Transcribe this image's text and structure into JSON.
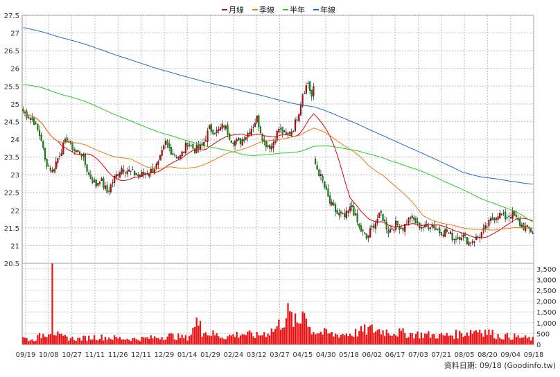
{
  "chart_data": {
    "type": "candlestick",
    "legend": [
      {
        "name": "月線",
        "color": "#dd0000"
      },
      {
        "name": "季線",
        "color": "#ee7711"
      },
      {
        "name": "半年",
        "color": "#22cc22"
      },
      {
        "name": "年線",
        "color": "#2266cc"
      }
    ],
    "price_axis": {
      "ylim": [
        20.5,
        27.5
      ],
      "ticks": [
        "27.5",
        "27",
        "26.5",
        "26",
        "25.5",
        "25",
        "24.5",
        "24",
        "23.5",
        "23",
        "22.5",
        "22",
        "21.5",
        "21",
        "20.5"
      ],
      "tick_values": [
        27.5,
        27,
        26.5,
        26,
        25.5,
        25,
        24.5,
        24,
        23.5,
        23,
        22.5,
        22,
        21.5,
        21,
        20.5
      ]
    },
    "volume_axis": {
      "ylim": [
        0,
        3750
      ],
      "ticks": [
        "3,500",
        "3,000",
        "2,500",
        "2,000",
        "1,500",
        "1,000",
        "500",
        "0"
      ],
      "tick_values": [
        3500,
        3000,
        2500,
        2000,
        1500,
        1000,
        500,
        0
      ]
    },
    "x_labels": [
      "09/19",
      "10/08",
      "10/27",
      "11/11",
      "11/26",
      "12/11",
      "12/29",
      "01/14",
      "01/29",
      "02/24",
      "03/12",
      "03/27",
      "04/15",
      "04/30",
      "05/18",
      "06/02",
      "06/17",
      "07/03",
      "07/21",
      "08/05",
      "08/20",
      "09/04",
      "09/18"
    ],
    "close_anchors": [
      [
        0,
        24.8
      ],
      [
        6,
        24.5
      ],
      [
        10,
        24.0
      ],
      [
        12,
        23.4
      ],
      [
        16,
        23.1
      ],
      [
        20,
        23.6
      ],
      [
        24,
        24.0
      ],
      [
        28,
        23.7
      ],
      [
        32,
        23.6
      ],
      [
        36,
        23.0
      ],
      [
        40,
        22.7
      ],
      [
        42,
        22.9
      ],
      [
        46,
        22.5
      ],
      [
        50,
        22.9
      ],
      [
        54,
        23.2
      ],
      [
        58,
        23.1
      ],
      [
        62,
        23.0
      ],
      [
        66,
        23.0
      ],
      [
        70,
        23.1
      ],
      [
        74,
        23.3
      ],
      [
        78,
        23.9
      ],
      [
        82,
        23.6
      ],
      [
        86,
        23.5
      ],
      [
        90,
        23.9
      ],
      [
        94,
        23.7
      ],
      [
        98,
        23.8
      ],
      [
        102,
        24.3
      ],
      [
        106,
        24.2
      ],
      [
        110,
        24.4
      ],
      [
        114,
        24.0
      ],
      [
        118,
        23.9
      ],
      [
        122,
        24.1
      ],
      [
        126,
        24.4
      ],
      [
        128,
        24.6
      ],
      [
        132,
        23.9
      ],
      [
        136,
        23.8
      ],
      [
        140,
        24.3
      ],
      [
        144,
        24.1
      ],
      [
        148,
        24.3
      ],
      [
        151,
        24.8
      ],
      [
        153,
        25.3
      ],
      [
        156,
        25.6
      ],
      [
        158,
        25.2
      ],
      [
        159,
        25.4
      ],
      [
        160,
        23.3
      ],
      [
        164,
        22.8
      ],
      [
        168,
        22.2
      ],
      [
        172,
        21.9
      ],
      [
        176,
        21.8
      ],
      [
        180,
        22.1
      ],
      [
        184,
        21.5
      ],
      [
        188,
        21.2
      ],
      [
        192,
        21.6
      ],
      [
        196,
        21.9
      ],
      [
        200,
        21.4
      ],
      [
        204,
        21.6
      ],
      [
        208,
        21.5
      ],
      [
        212,
        21.8
      ],
      [
        216,
        21.6
      ],
      [
        220,
        21.5
      ],
      [
        224,
        21.6
      ],
      [
        228,
        21.4
      ],
      [
        232,
        21.4
      ],
      [
        236,
        21.2
      ],
      [
        240,
        21.3
      ],
      [
        244,
        21.1
      ],
      [
        248,
        21.2
      ],
      [
        252,
        21.4
      ],
      [
        256,
        21.7
      ],
      [
        260,
        21.9
      ],
      [
        264,
        21.8
      ],
      [
        268,
        21.9
      ],
      [
        272,
        21.6
      ],
      [
        275,
        21.5
      ],
      [
        279,
        21.4
      ]
    ],
    "volume_anchors": [
      [
        0,
        300
      ],
      [
        5,
        200
      ],
      [
        12,
        500
      ],
      [
        15,
        700
      ],
      [
        16,
        3750
      ],
      [
        17,
        600
      ],
      [
        20,
        350
      ],
      [
        30,
        250
      ],
      [
        40,
        350
      ],
      [
        50,
        300
      ],
      [
        60,
        250
      ],
      [
        70,
        300
      ],
      [
        80,
        400
      ],
      [
        90,
        300
      ],
      [
        96,
        1050
      ],
      [
        97,
        1800
      ],
      [
        98,
        600
      ],
      [
        110,
        350
      ],
      [
        120,
        500
      ],
      [
        128,
        400
      ],
      [
        138,
        700
      ],
      [
        145,
        1400
      ],
      [
        150,
        900
      ],
      [
        152,
        1100
      ],
      [
        154,
        2200
      ],
      [
        156,
        800
      ],
      [
        160,
        600
      ],
      [
        170,
        450
      ],
      [
        180,
        500
      ],
      [
        190,
        700
      ],
      [
        200,
        600
      ],
      [
        210,
        500
      ],
      [
        220,
        450
      ],
      [
        230,
        400
      ],
      [
        240,
        500
      ],
      [
        250,
        700
      ],
      [
        260,
        400
      ],
      [
        270,
        350
      ],
      [
        279,
        250
      ]
    ],
    "num_days": 280,
    "ma_periods": [
      20,
      60,
      120,
      240
    ],
    "pre_history": {
      "ma120_start": 25.55,
      "ma240_start": 27.15
    },
    "footer": "資料日期: 09/18 (Goodinfo.tw)"
  }
}
